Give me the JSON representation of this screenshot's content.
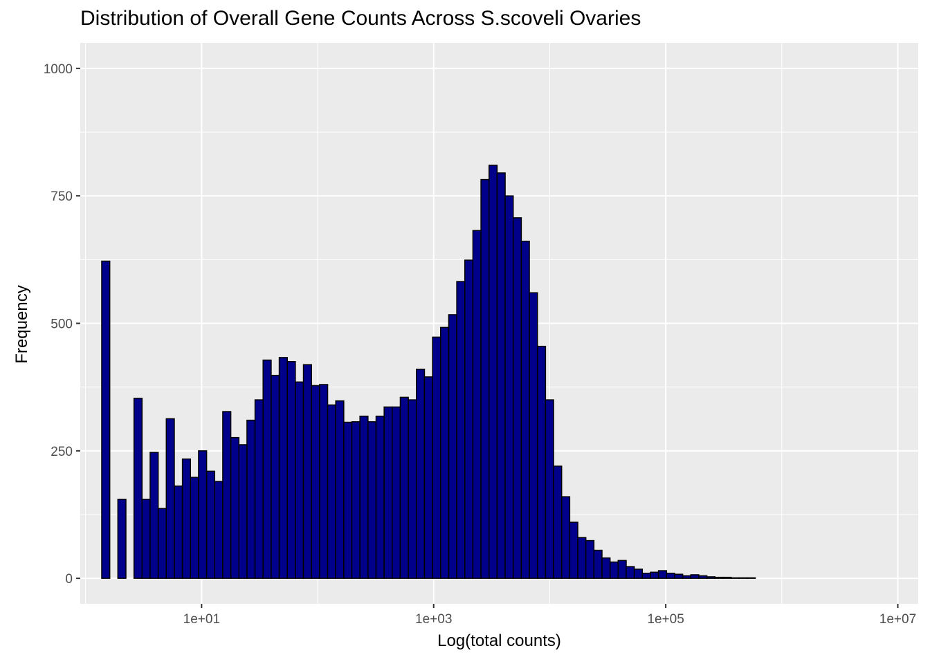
{
  "chart_data": {
    "type": "bar",
    "title": "Distribution of Overall Gene Counts Across S.scoveli Ovaries",
    "xlabel": "Log(total counts)",
    "ylabel": "Frequency",
    "x_scale": "log10",
    "xlim": [
      0.9,
      15000000
    ],
    "ylim": [
      -50,
      1050
    ],
    "x_ticks": [
      {
        "value": 10,
        "label": "1e+01"
      },
      {
        "value": 1000,
        "label": "1e+03"
      },
      {
        "value": 100000,
        "label": "1e+05"
      },
      {
        "value": 10000000,
        "label": "1e+07"
      }
    ],
    "y_ticks": [
      {
        "value": 0,
        "label": "0"
      },
      {
        "value": 250,
        "label": "250"
      },
      {
        "value": 500,
        "label": "500"
      },
      {
        "value": 750,
        "label": "750"
      },
      {
        "value": 1000,
        "label": "1000"
      }
    ],
    "grid": true,
    "bins": 100,
    "bin_range": [
      1,
      9000000
    ],
    "values": [
      0,
      0,
      622,
      0,
      155,
      0,
      353,
      155,
      247,
      137,
      313,
      181,
      234,
      198,
      250,
      210,
      190,
      327,
      276,
      262,
      310,
      350,
      428,
      398,
      433,
      425,
      385,
      419,
      378,
      380,
      340,
      348,
      306,
      307,
      318,
      307,
      318,
      336,
      336,
      355,
      350,
      410,
      395,
      473,
      492,
      517,
      582,
      624,
      682,
      782,
      810,
      795,
      750,
      707,
      661,
      560,
      455,
      350,
      220,
      160,
      110,
      80,
      74,
      55,
      40,
      32,
      35,
      23,
      18,
      10,
      12,
      15,
      10,
      8,
      5,
      7,
      5,
      3,
      2,
      2,
      1,
      1,
      1,
      0,
      0,
      0,
      0,
      0,
      0,
      0,
      0,
      0,
      0,
      0,
      0,
      0,
      0,
      0,
      0,
      0
    ],
    "bar_fill": "#00008B",
    "bar_stroke": "#000000",
    "panel_background": "#EBEBEB",
    "grid_color": "#FFFFFF"
  }
}
